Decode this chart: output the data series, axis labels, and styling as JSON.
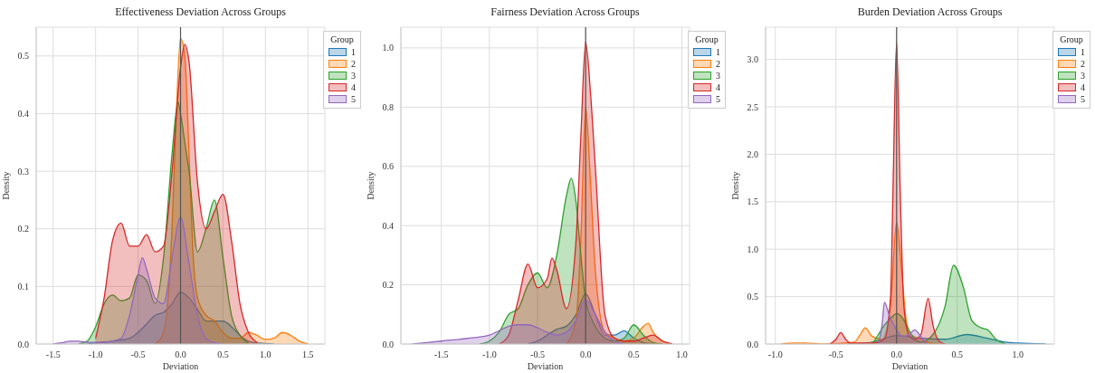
{
  "chart_data": [
    {
      "type": "area",
      "title": "Effectiveness Deviation Across Groups",
      "xlabel": "Deviation",
      "ylabel": "Density",
      "legend_title": "Group",
      "legend": "top right",
      "grid": true,
      "marker": "none",
      "xlim": [
        -1.7,
        1.7
      ],
      "xticks": [
        {
          "value": -1.5,
          "label": "-1.5"
        },
        {
          "value": -1,
          "label": "-1.0"
        },
        {
          "value": -0.5,
          "label": "-0.5"
        },
        {
          "value": 0,
          "label": "0.0"
        },
        {
          "value": 0.5,
          "label": "0.5"
        },
        {
          "value": 1,
          "label": "1.0"
        },
        {
          "value": 1.5,
          "label": "1.5"
        }
      ],
      "ylim": [
        0,
        0.55
      ],
      "yticks": [
        {
          "value": 0,
          "label": "0.0"
        },
        {
          "value": 0.1,
          "label": "0.1"
        },
        {
          "value": 0.2,
          "label": "0.2"
        },
        {
          "value": 0.3,
          "label": "0.3"
        },
        {
          "value": 0.4,
          "label": "0.4"
        },
        {
          "value": 0.5,
          "label": "0.5"
        }
      ],
      "ref_lines": [
        {
          "axis": "x",
          "value": 0,
          "color": "#555555"
        }
      ],
      "series": [
        {
          "name": "1",
          "color": "#1f77b4",
          "x": [
            -1.1,
            -1.0,
            -0.8,
            -0.6,
            -0.5,
            -0.4,
            -0.3,
            -0.2,
            -0.1,
            0,
            0.1,
            0.2,
            0.3,
            0.4,
            0.5,
            0.6,
            0.7,
            0.8,
            0.9,
            1.0,
            1.1
          ],
          "values": [
            0,
            0.002,
            0.005,
            0.01,
            0.02,
            0.035,
            0.05,
            0.055,
            0.07,
            0.09,
            0.08,
            0.06,
            0.04,
            0.04,
            0.04,
            0.03,
            0.015,
            0.005,
            0.002,
            0.001,
            0
          ]
        },
        {
          "name": "2",
          "color": "#ff7f0e",
          "x": [
            -0.3,
            -0.2,
            -0.1,
            -0.05,
            0,
            0.05,
            0.1,
            0.15,
            0.2,
            0.3,
            0.4,
            0.5,
            0.6,
            0.7,
            0.8,
            0.9,
            1.0,
            1.1,
            1.2,
            1.3,
            1.4,
            1.5
          ],
          "values": [
            0,
            0.02,
            0.2,
            0.4,
            0.53,
            0.5,
            0.33,
            0.15,
            0.08,
            0.05,
            0.04,
            0.02,
            0.01,
            0.01,
            0.02,
            0.015,
            0.008,
            0.01,
            0.02,
            0.015,
            0.005,
            0
          ]
        },
        {
          "name": "3",
          "color": "#2ca02c",
          "x": [
            -1.2,
            -1.1,
            -1.0,
            -0.9,
            -0.8,
            -0.7,
            -0.6,
            -0.5,
            -0.4,
            -0.3,
            -0.2,
            -0.1,
            -0.03,
            0,
            0.05,
            0.1,
            0.2,
            0.3,
            0.4,
            0.5,
            0.6,
            0.7,
            0.8
          ],
          "values": [
            0,
            0.005,
            0.03,
            0.07,
            0.085,
            0.075,
            0.08,
            0.12,
            0.11,
            0.07,
            0.15,
            0.33,
            0.42,
            0.4,
            0.35,
            0.3,
            0.16,
            0.2,
            0.25,
            0.15,
            0.05,
            0.015,
            0.002
          ]
        },
        {
          "name": "4",
          "color": "#d62728",
          "x": [
            -1.0,
            -0.9,
            -0.8,
            -0.7,
            -0.6,
            -0.5,
            -0.4,
            -0.3,
            -0.2,
            -0.1,
            0,
            0.05,
            0.1,
            0.2,
            0.3,
            0.4,
            0.5,
            0.6,
            0.7,
            0.8,
            0.9
          ],
          "values": [
            0.01,
            0.08,
            0.18,
            0.21,
            0.17,
            0.17,
            0.19,
            0.16,
            0.17,
            0.3,
            0.48,
            0.52,
            0.49,
            0.28,
            0.2,
            0.23,
            0.26,
            0.18,
            0.07,
            0.02,
            0.003
          ]
        },
        {
          "name": "5",
          "color": "#9467bd",
          "x": [
            -1.5,
            -1.4,
            -1.3,
            -1.2,
            -1.1,
            -1.0,
            -0.9,
            -0.8,
            -0.7,
            -0.6,
            -0.5,
            -0.45,
            -0.4,
            -0.3,
            -0.2,
            -0.1,
            0,
            0.1,
            0.2,
            0.3,
            0.4,
            0.5
          ],
          "values": [
            0,
            0.002,
            0.005,
            0.005,
            0.003,
            0.003,
            0.003,
            0.005,
            0.01,
            0.05,
            0.12,
            0.15,
            0.13,
            0.08,
            0.07,
            0.15,
            0.22,
            0.14,
            0.05,
            0.01,
            0.002,
            0
          ]
        }
      ]
    },
    {
      "type": "area",
      "title": "Fairness Deviation Across Groups",
      "xlabel": "Deviation",
      "ylabel": "Density",
      "legend_title": "Group",
      "legend": "top right",
      "grid": true,
      "marker": "none",
      "xlim": [
        -1.92,
        1.08
      ],
      "xticks": [
        {
          "value": -1.5,
          "label": "-1.5"
        },
        {
          "value": -1,
          "label": "-1.0"
        },
        {
          "value": -0.5,
          "label": "-0.5"
        },
        {
          "value": 0,
          "label": "0.0"
        },
        {
          "value": 0.5,
          "label": "0.5"
        },
        {
          "value": 1,
          "label": "1.0"
        }
      ],
      "ylim": [
        0,
        1.07
      ],
      "yticks": [
        {
          "value": 0,
          "label": "0.0"
        },
        {
          "value": 0.2,
          "label": "0.2"
        },
        {
          "value": 0.4,
          "label": "0.4"
        },
        {
          "value": 0.6,
          "label": "0.6"
        },
        {
          "value": 0.8,
          "label": "0.8"
        },
        {
          "value": 1,
          "label": "1.0"
        }
      ],
      "ref_lines": [
        {
          "axis": "x",
          "value": 0,
          "color": "#555555"
        }
      ],
      "series": [
        {
          "name": "1",
          "color": "#1f77b4",
          "x": [
            -0.6,
            -0.5,
            -0.4,
            -0.3,
            -0.2,
            -0.1,
            0,
            0.1,
            0.2,
            0.3,
            0.4,
            0.5,
            0.6,
            0.7
          ],
          "values": [
            0,
            0.01,
            0.03,
            0.05,
            0.06,
            0.1,
            0.17,
            0.1,
            0.03,
            0.03,
            0.045,
            0.02,
            0.005,
            0
          ]
        },
        {
          "name": "2",
          "color": "#ff7f0e",
          "x": [
            -0.2,
            -0.1,
            -0.05,
            0,
            0.05,
            0.1,
            0.2,
            0.3,
            0.4,
            0.5,
            0.6,
            0.65,
            0.7,
            0.8,
            0.9
          ],
          "values": [
            0,
            0.08,
            0.35,
            0.8,
            0.55,
            0.25,
            0.04,
            0.02,
            0.01,
            0.02,
            0.06,
            0.07,
            0.04,
            0.01,
            0
          ]
        },
        {
          "name": "3",
          "color": "#2ca02c",
          "x": [
            -1.1,
            -1.0,
            -0.9,
            -0.8,
            -0.7,
            -0.6,
            -0.5,
            -0.4,
            -0.3,
            -0.2,
            -0.15,
            -0.1,
            -0.05,
            0,
            0.1,
            0.2,
            0.3,
            0.4,
            0.5,
            0.6,
            0.7,
            0.8
          ],
          "values": [
            0,
            0.01,
            0.04,
            0.1,
            0.12,
            0.2,
            0.24,
            0.19,
            0.3,
            0.5,
            0.56,
            0.48,
            0.3,
            0.15,
            0.06,
            0.02,
            0.01,
            0.02,
            0.065,
            0.03,
            0.005,
            0
          ]
        },
        {
          "name": "4",
          "color": "#d62728",
          "x": [
            -0.9,
            -0.8,
            -0.7,
            -0.6,
            -0.5,
            -0.4,
            -0.35,
            -0.3,
            -0.2,
            -0.1,
            -0.05,
            0,
            0.05,
            0.1,
            0.2,
            0.3,
            0.4,
            0.5,
            0.6,
            0.7,
            0.8,
            0.9
          ],
          "values": [
            0,
            0.03,
            0.15,
            0.27,
            0.19,
            0.22,
            0.29,
            0.25,
            0.12,
            0.35,
            0.7,
            1.02,
            0.85,
            0.6,
            0.1,
            0.02,
            0.01,
            0.01,
            0.02,
            0.03,
            0.01,
            0
          ]
        },
        {
          "name": "5",
          "color": "#9467bd",
          "x": [
            -1.8,
            -1.5,
            -1.2,
            -1.0,
            -0.9,
            -0.8,
            -0.7,
            -0.6,
            -0.5,
            -0.4,
            -0.3,
            -0.2,
            -0.1,
            0,
            0.1,
            0.2,
            0.3,
            0.4
          ],
          "values": [
            0,
            0.01,
            0.02,
            0.03,
            0.045,
            0.06,
            0.065,
            0.065,
            0.055,
            0.04,
            0.03,
            0.04,
            0.08,
            0.15,
            0.1,
            0.04,
            0.01,
            0
          ]
        }
      ]
    },
    {
      "type": "area",
      "title": "Burden Deviation Across Groups",
      "xlabel": "Deviation",
      "ylabel": "Density",
      "legend_title": "Group",
      "legend": "top right",
      "grid": true,
      "marker": "none",
      "xlim": [
        -1.08,
        1.3
      ],
      "xticks": [
        {
          "value": -1,
          "label": "-1.0"
        },
        {
          "value": -0.5,
          "label": "-0.5"
        },
        {
          "value": 0,
          "label": "0.0"
        },
        {
          "value": 0.5,
          "label": "0.5"
        },
        {
          "value": 1,
          "label": "1.0"
        }
      ],
      "ylim": [
        0,
        3.34
      ],
      "yticks": [
        {
          "value": 0,
          "label": "0.0"
        },
        {
          "value": 0.5,
          "label": "0.5"
        },
        {
          "value": 1,
          "label": "1.0"
        },
        {
          "value": 1.5,
          "label": "1.5"
        },
        {
          "value": 2,
          "label": "2.0"
        },
        {
          "value": 2.5,
          "label": "2.5"
        },
        {
          "value": 3,
          "label": "3.0"
        }
      ],
      "ref_lines": [
        {
          "axis": "x",
          "value": 0,
          "color": "#555555"
        }
      ],
      "series": [
        {
          "name": "1",
          "color": "#1f77b4",
          "x": [
            -0.4,
            -0.2,
            0,
            0.2,
            0.4,
            0.58,
            0.75,
            0.9,
            1.0,
            1.23
          ],
          "values": [
            0,
            0.02,
            0.09,
            0.06,
            0.05,
            0.1,
            0.06,
            0.02,
            0.01,
            0
          ]
        },
        {
          "name": "2",
          "color": "#ff7f0e",
          "x": [
            -0.95,
            -0.85,
            -0.75,
            -0.6,
            -0.35,
            -0.3,
            -0.26,
            -0.2,
            -0.12,
            -0.05,
            0,
            0.04,
            0.08,
            0.12,
            0.2,
            0.25,
            0.35
          ],
          "values": [
            0,
            0.01,
            0.01,
            0,
            0.02,
            0.1,
            0.17,
            0.08,
            0.05,
            0.4,
            1.28,
            0.8,
            0.25,
            0.1,
            0.05,
            0.02,
            0
          ]
        },
        {
          "name": "3",
          "color": "#2ca02c",
          "x": [
            -0.2,
            -0.15,
            -0.1,
            -0.05,
            0,
            0.05,
            0.1,
            0.15,
            0.2,
            0.3,
            0.4,
            0.47,
            0.55,
            0.62,
            0.7,
            0.75,
            0.82,
            0.9
          ],
          "values": [
            0,
            0.1,
            0.2,
            0.27,
            0.32,
            0.27,
            0.15,
            0.05,
            0.02,
            0.1,
            0.4,
            0.83,
            0.6,
            0.25,
            0.17,
            0.15,
            0.05,
            0
          ]
        },
        {
          "name": "4",
          "color": "#d62728",
          "x": [
            -0.55,
            -0.5,
            -0.46,
            -0.42,
            -0.38,
            -0.3,
            -0.2,
            -0.1,
            -0.05,
            -0.03,
            0,
            0.03,
            0.06,
            0.1,
            0.15,
            0.2,
            0.26,
            0.3,
            0.35,
            0.4
          ],
          "values": [
            0,
            0.05,
            0.12,
            0.05,
            0.01,
            0.01,
            0.01,
            0.05,
            0.5,
            1.6,
            3.18,
            1.6,
            0.4,
            0.1,
            0.05,
            0.1,
            0.48,
            0.2,
            0.03,
            0
          ]
        },
        {
          "name": "5",
          "color": "#9467bd",
          "x": [
            -0.15,
            -0.12,
            -0.1,
            -0.06,
            0,
            0.05,
            0.1,
            0.15,
            0.2,
            0.25
          ],
          "values": [
            0,
            0.2,
            0.44,
            0.3,
            0.15,
            0.08,
            0.1,
            0.15,
            0.08,
            0
          ]
        }
      ]
    }
  ]
}
